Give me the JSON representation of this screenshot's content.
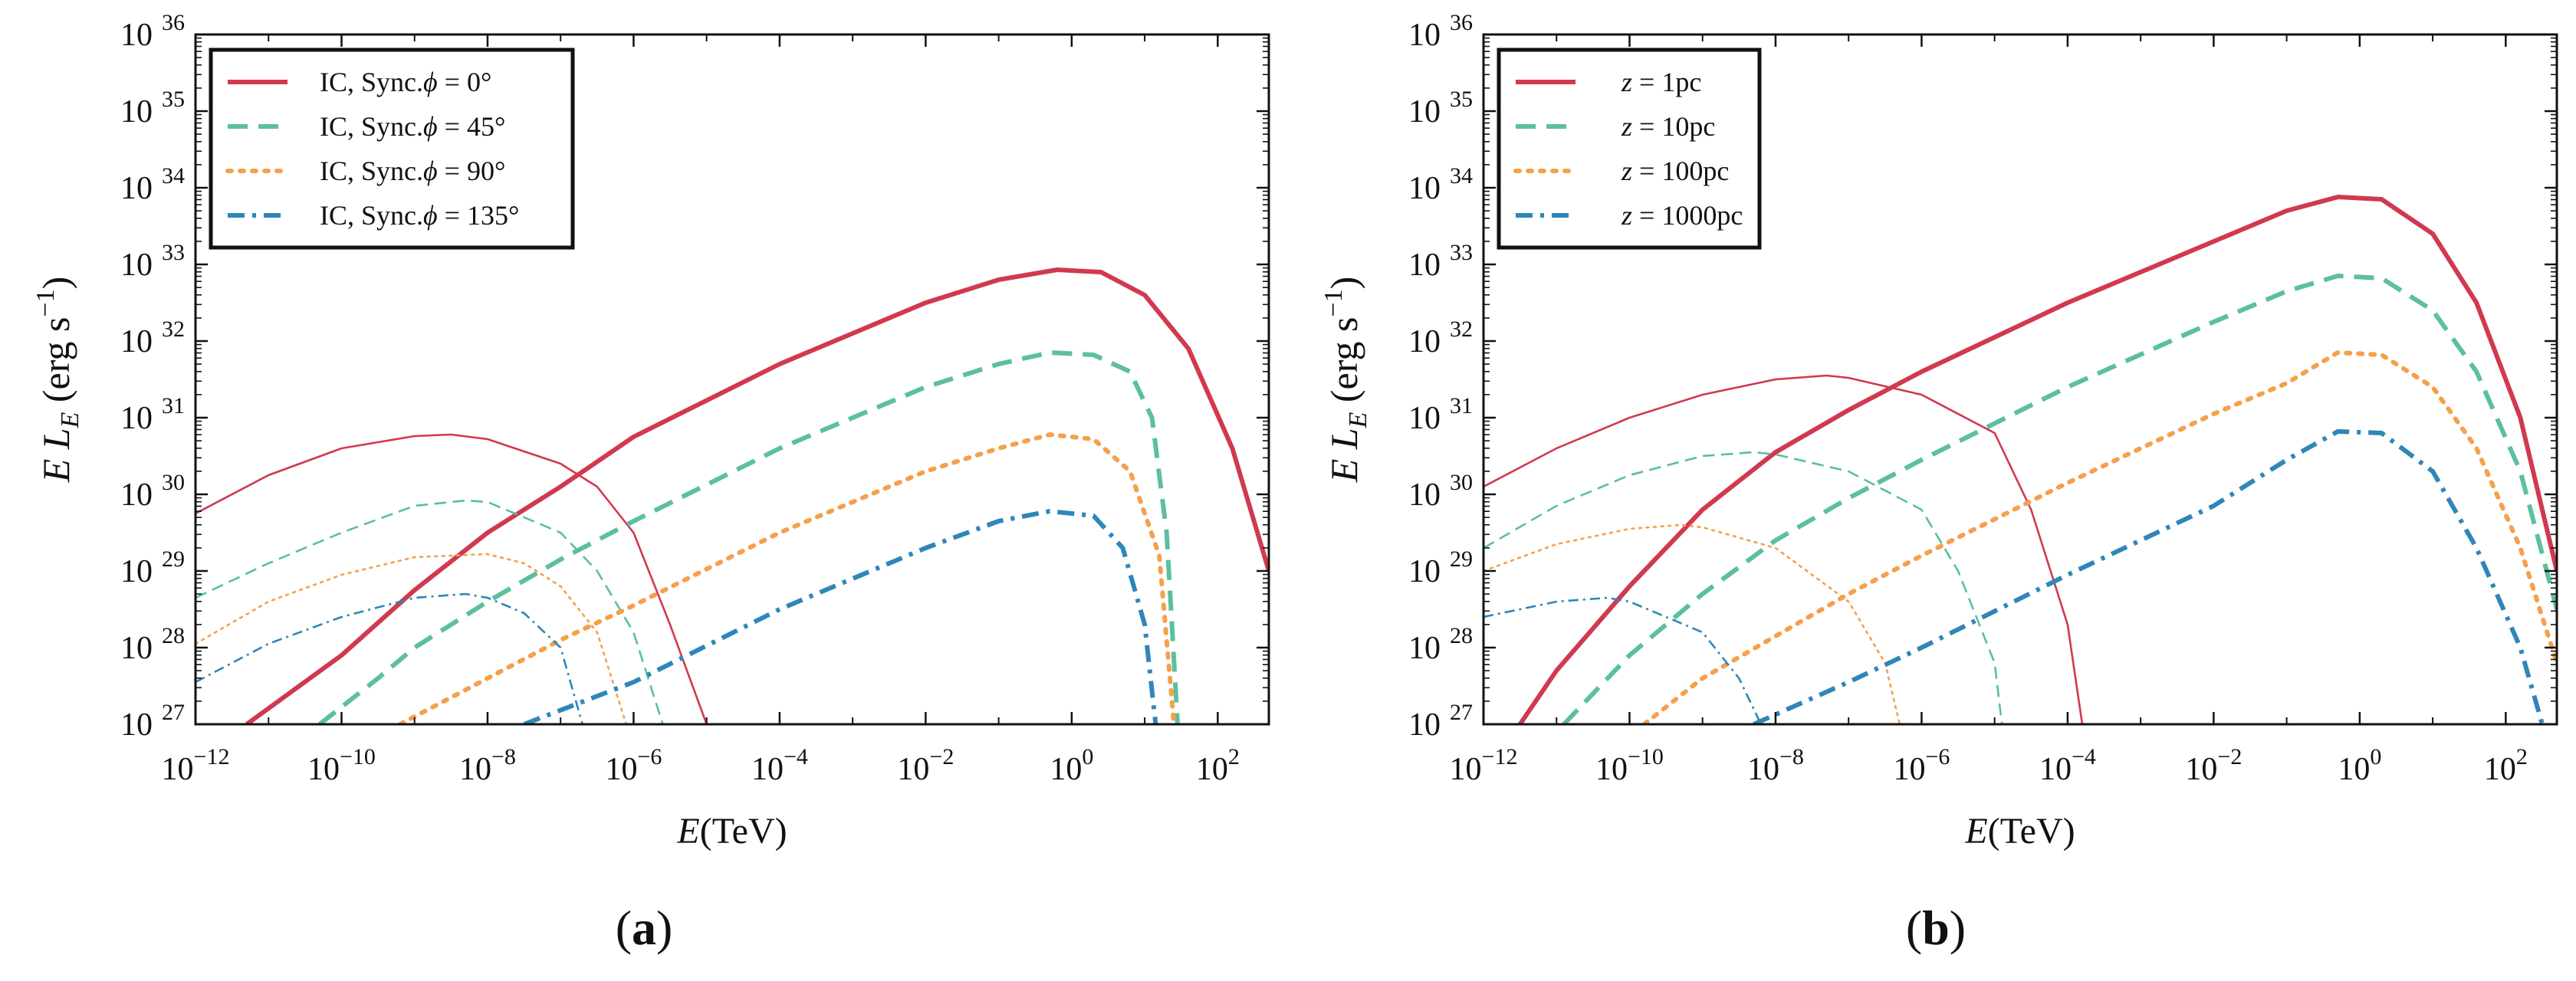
{
  "colors": {
    "ic_red": "#d1394f",
    "teal": "#5cbf9e",
    "orange": "#f5a04d",
    "blue": "#2f86b8",
    "axis": "#111111"
  },
  "chart_data": [
    {
      "type": "line",
      "panel_label": "(a)",
      "xlabel_base": "E",
      "xlabel_unit": "(TeV)",
      "ylabel_base": "E L",
      "ylabel_sub": "E",
      "ylabel_unit": "(erg s",
      "ylabel_exp": "−1",
      "ylabel_close": ")",
      "x_scale": "log10",
      "y_scale": "log10",
      "xlim_log10": [
        -12,
        2.7
      ],
      "ylim_log10": [
        27,
        36
      ],
      "x_ticks_log10": [
        -12,
        -10,
        -8,
        -6,
        -4,
        -2,
        0,
        2
      ],
      "y_ticks_log10": [
        27,
        28,
        29,
        30,
        31,
        32,
        33,
        34,
        35,
        36
      ],
      "tick_base": "10",
      "legend_position": "top-left",
      "legend": [
        {
          "prefix": "IC, Sync.",
          "var": "ϕ",
          "eq": " = 0°",
          "color_key": "ic_red",
          "dash": "solid"
        },
        {
          "prefix": "IC, Sync.",
          "var": "ϕ",
          "eq": " = 45°",
          "color_key": "teal",
          "dash": "dashed"
        },
        {
          "prefix": "IC, Sync.",
          "var": "ϕ",
          "eq": " = 90°",
          "color_key": "orange",
          "dash": "dotted"
        },
        {
          "prefix": "IC, Sync.",
          "var": "ϕ",
          "eq": " = 135°",
          "color_key": "blue",
          "dash": "dashdot"
        }
      ],
      "series": [
        {
          "name": "IC ϕ=0°",
          "component": "IC",
          "color_key": "ic_red",
          "dash": "solid",
          "points_log10": [
            [
              -11.3,
              27
            ],
            [
              -10,
              27.9
            ],
            [
              -9,
              28.75
            ],
            [
              -8,
              29.5
            ],
            [
              -7,
              30.1
            ],
            [
              -6,
              30.75
            ],
            [
              -4,
              31.7
            ],
            [
              -2,
              32.5
            ],
            [
              -1,
              32.8
            ],
            [
              -0.2,
              32.93
            ],
            [
              0.4,
              32.9
            ],
            [
              1,
              32.6
            ],
            [
              1.6,
              31.9
            ],
            [
              2.2,
              30.6
            ],
            [
              2.7,
              29.0
            ]
          ]
        },
        {
          "name": "Sync ϕ=0°",
          "component": "Sync",
          "color_key": "ic_red",
          "dash": "solid",
          "points_log10": [
            [
              -12,
              29.75
            ],
            [
              -11,
              30.25
            ],
            [
              -10,
              30.6
            ],
            [
              -9,
              30.76
            ],
            [
              -8.5,
              30.78
            ],
            [
              -8,
              30.72
            ],
            [
              -7,
              30.4
            ],
            [
              -6.5,
              30.1
            ],
            [
              -6,
              29.5
            ],
            [
              -5.5,
              28.3
            ],
            [
              -5,
              27
            ]
          ]
        },
        {
          "name": "IC ϕ=45°",
          "component": "IC",
          "color_key": "teal",
          "dash": "dashed",
          "points_log10": [
            [
              -10.3,
              27
            ],
            [
              -9.5,
              27.6
            ],
            [
              -9,
              28.0
            ],
            [
              -8,
              28.6
            ],
            [
              -7,
              29.15
            ],
            [
              -6,
              29.65
            ],
            [
              -4,
              30.6
            ],
            [
              -2,
              31.4
            ],
            [
              -1,
              31.7
            ],
            [
              -0.3,
              31.85
            ],
            [
              0.3,
              31.82
            ],
            [
              0.8,
              31.6
            ],
            [
              1.1,
              31.0
            ],
            [
              1.3,
              29.5
            ],
            [
              1.45,
              27
            ]
          ]
        },
        {
          "name": "Sync ϕ=45°",
          "component": "Sync",
          "color_key": "teal",
          "dash": "dashed",
          "points_log10": [
            [
              -12,
              28.65
            ],
            [
              -11,
              29.1
            ],
            [
              -10,
              29.5
            ],
            [
              -9,
              29.85
            ],
            [
              -8.3,
              29.92
            ],
            [
              -8,
              29.9
            ],
            [
              -7,
              29.5
            ],
            [
              -6.5,
              29.0
            ],
            [
              -6,
              28.2
            ],
            [
              -5.6,
              27
            ]
          ]
        },
        {
          "name": "IC ϕ=90°",
          "component": "IC",
          "color_key": "orange",
          "dash": "dotted",
          "points_log10": [
            [
              -9.2,
              27
            ],
            [
              -8,
              27.6
            ],
            [
              -7,
              28.1
            ],
            [
              -6,
              28.55
            ],
            [
              -4,
              29.5
            ],
            [
              -2,
              30.3
            ],
            [
              -1,
              30.6
            ],
            [
              -0.3,
              30.78
            ],
            [
              0.3,
              30.72
            ],
            [
              0.8,
              30.3
            ],
            [
              1.2,
              29.2
            ],
            [
              1.4,
              27
            ]
          ]
        },
        {
          "name": "Sync ϕ=90°",
          "component": "Sync",
          "color_key": "orange",
          "dash": "dotted",
          "points_log10": [
            [
              -12,
              28.05
            ],
            [
              -11,
              28.6
            ],
            [
              -10,
              28.95
            ],
            [
              -9,
              29.18
            ],
            [
              -8,
              29.22
            ],
            [
              -7.5,
              29.1
            ],
            [
              -7,
              28.8
            ],
            [
              -6.5,
              28.2
            ],
            [
              -6.1,
              27
            ]
          ]
        },
        {
          "name": "IC ϕ=135°",
          "component": "IC",
          "color_key": "blue",
          "dash": "dashdot",
          "points_log10": [
            [
              -7.5,
              27
            ],
            [
              -6,
              27.55
            ],
            [
              -4,
              28.5
            ],
            [
              -2,
              29.3
            ],
            [
              -1,
              29.65
            ],
            [
              -0.3,
              29.78
            ],
            [
              0.3,
              29.72
            ],
            [
              0.7,
              29.3
            ],
            [
              1.0,
              28.3
            ],
            [
              1.15,
              27
            ]
          ]
        },
        {
          "name": "Sync ϕ=135°",
          "component": "Sync",
          "color_key": "blue",
          "dash": "dashdot",
          "points_log10": [
            [
              -12,
              27.55
            ],
            [
              -11,
              28.05
            ],
            [
              -10,
              28.4
            ],
            [
              -9,
              28.65
            ],
            [
              -8.3,
              28.7
            ],
            [
              -8,
              28.65
            ],
            [
              -7.5,
              28.45
            ],
            [
              -7,
              28.0
            ],
            [
              -6.7,
              27
            ]
          ]
        }
      ]
    },
    {
      "type": "line",
      "panel_label": "(b)",
      "xlabel_base": "E",
      "xlabel_unit": "(TeV)",
      "ylabel_base": "E L",
      "ylabel_sub": "E",
      "ylabel_unit": "(erg s",
      "ylabel_exp": "−1",
      "ylabel_close": ")",
      "x_scale": "log10",
      "y_scale": "log10",
      "xlim_log10": [
        -12,
        2.7
      ],
      "ylim_log10": [
        27,
        36
      ],
      "x_ticks_log10": [
        -12,
        -10,
        -8,
        -6,
        -4,
        -2,
        0,
        2
      ],
      "y_ticks_log10": [
        27,
        28,
        29,
        30,
        31,
        32,
        33,
        34,
        35,
        36
      ],
      "tick_base": "10",
      "legend_position": "top-left",
      "legend": [
        {
          "prefix": "",
          "var": "z",
          "eq": " = 1pc",
          "color_key": "ic_red",
          "dash": "solid"
        },
        {
          "prefix": "",
          "var": "z",
          "eq": " = 10pc",
          "color_key": "teal",
          "dash": "dashed"
        },
        {
          "prefix": "",
          "var": "z",
          "eq": " = 100pc",
          "color_key": "orange",
          "dash": "dotted"
        },
        {
          "prefix": "",
          "var": "z",
          "eq": " = 1000pc",
          "color_key": "blue",
          "dash": "dashdot"
        }
      ],
      "series": [
        {
          "name": "IC z=1pc",
          "component": "IC",
          "color_key": "ic_red",
          "dash": "solid",
          "points_log10": [
            [
              -11.5,
              27
            ],
            [
              -11,
              27.7
            ],
            [
              -10,
              28.8
            ],
            [
              -9,
              29.8
            ],
            [
              -8,
              30.55
            ],
            [
              -7,
              31.1
            ],
            [
              -6,
              31.6
            ],
            [
              -4,
              32.5
            ],
            [
              -2,
              33.3
            ],
            [
              -1,
              33.7
            ],
            [
              -0.3,
              33.88
            ],
            [
              0.3,
              33.85
            ],
            [
              1,
              33.4
            ],
            [
              1.6,
              32.5
            ],
            [
              2.2,
              31.0
            ],
            [
              2.7,
              29.0
            ]
          ]
        },
        {
          "name": "Sync z=1pc",
          "component": "Sync",
          "color_key": "ic_red",
          "dash": "solid",
          "points_log10": [
            [
              -12,
              30.1
            ],
            [
              -11,
              30.6
            ],
            [
              -10,
              31.0
            ],
            [
              -9,
              31.3
            ],
            [
              -8,
              31.5
            ],
            [
              -7.3,
              31.55
            ],
            [
              -7,
              31.52
            ],
            [
              -6,
              31.3
            ],
            [
              -5,
              30.8
            ],
            [
              -4.5,
              29.8
            ],
            [
              -4,
              28.3
            ],
            [
              -3.8,
              27
            ]
          ]
        },
        {
          "name": "IC z=10pc",
          "component": "IC",
          "color_key": "teal",
          "dash": "dashed",
          "points_log10": [
            [
              -10.9,
              27
            ],
            [
              -10,
              27.9
            ],
            [
              -9,
              28.7
            ],
            [
              -8,
              29.4
            ],
            [
              -7,
              29.95
            ],
            [
              -6,
              30.45
            ],
            [
              -4,
              31.4
            ],
            [
              -2,
              32.25
            ],
            [
              -1,
              32.65
            ],
            [
              -0.3,
              32.85
            ],
            [
              0.3,
              32.82
            ],
            [
              1,
              32.4
            ],
            [
              1.6,
              31.6
            ],
            [
              2.2,
              30.3
            ],
            [
              2.7,
              28.5
            ]
          ]
        },
        {
          "name": "Sync z=10pc",
          "component": "Sync",
          "color_key": "teal",
          "dash": "dashed",
          "points_log10": [
            [
              -12,
              29.3
            ],
            [
              -11,
              29.85
            ],
            [
              -10,
              30.25
            ],
            [
              -9,
              30.5
            ],
            [
              -8.3,
              30.55
            ],
            [
              -8,
              30.52
            ],
            [
              -7,
              30.3
            ],
            [
              -6,
              29.8
            ],
            [
              -5.5,
              29.0
            ],
            [
              -5,
              27.8
            ],
            [
              -4.9,
              27
            ]
          ]
        },
        {
          "name": "IC z=100pc",
          "component": "IC",
          "color_key": "orange",
          "dash": "dotted",
          "points_log10": [
            [
              -9.8,
              27
            ],
            [
              -9,
              27.6
            ],
            [
              -8,
              28.15
            ],
            [
              -7,
              28.7
            ],
            [
              -6,
              29.2
            ],
            [
              -4,
              30.15
            ],
            [
              -2,
              31.05
            ],
            [
              -1,
              31.45
            ],
            [
              -0.3,
              31.85
            ],
            [
              0.3,
              31.82
            ],
            [
              1,
              31.4
            ],
            [
              1.6,
              30.6
            ],
            [
              2.2,
              29.3
            ],
            [
              2.7,
              27.8
            ]
          ]
        },
        {
          "name": "Sync z=100pc",
          "component": "Sync",
          "color_key": "orange",
          "dash": "dotted",
          "points_log10": [
            [
              -12,
              29.0
            ],
            [
              -11,
              29.35
            ],
            [
              -10,
              29.55
            ],
            [
              -9.3,
              29.6
            ],
            [
              -9,
              29.57
            ],
            [
              -8,
              29.3
            ],
            [
              -7,
              28.6
            ],
            [
              -6.5,
              27.8
            ],
            [
              -6.3,
              27
            ]
          ]
        },
        {
          "name": "IC z=1000pc",
          "component": "IC",
          "color_key": "blue",
          "dash": "dashdot",
          "points_log10": [
            [
              -8.3,
              27
            ],
            [
              -7,
              27.55
            ],
            [
              -6,
              28.0
            ],
            [
              -4,
              28.95
            ],
            [
              -2,
              29.85
            ],
            [
              -1,
              30.45
            ],
            [
              -0.3,
              30.82
            ],
            [
              0.3,
              30.8
            ],
            [
              1,
              30.3
            ],
            [
              1.6,
              29.3
            ],
            [
              2.2,
              28.0
            ],
            [
              2.5,
              27
            ]
          ]
        },
        {
          "name": "Sync z=1000pc",
          "component": "Sync",
          "color_key": "blue",
          "dash": "dashdot",
          "points_log10": [
            [
              -12,
              28.4
            ],
            [
              -11,
              28.6
            ],
            [
              -10.3,
              28.65
            ],
            [
              -10,
              28.6
            ],
            [
              -9,
              28.2
            ],
            [
              -8.5,
              27.6
            ],
            [
              -8.2,
              27
            ]
          ]
        }
      ]
    }
  ]
}
